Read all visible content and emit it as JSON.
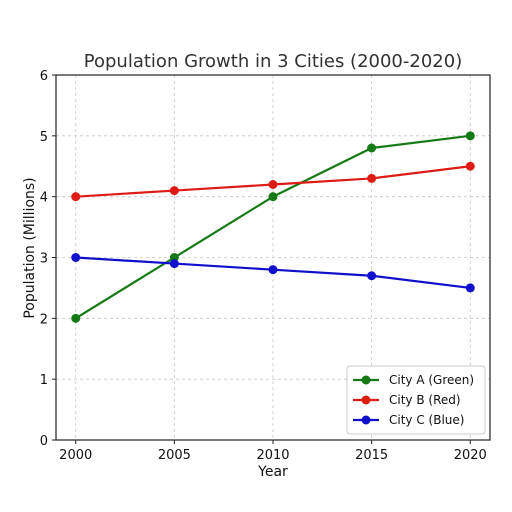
{
  "colors": {
    "green": "#157a15",
    "red": "#dd1c16",
    "blue": "#1010cc"
  },
  "chart_data": {
    "type": "line",
    "title": "Population Growth in 3 Cities (2000-2020)",
    "xlabel": "Year",
    "ylabel": "Population (Millions)",
    "x": [
      2000,
      2005,
      2010,
      2015,
      2020
    ],
    "x_ticks": [
      "2000",
      "2005",
      "2010",
      "2015",
      "2020"
    ],
    "y_ticks": [
      "0",
      "1",
      "2",
      "3",
      "4",
      "5",
      "6"
    ],
    "ylim": [
      0,
      6
    ],
    "xlim": [
      1999,
      2021
    ],
    "grid": true,
    "legend_position": "lower-right",
    "series": [
      {
        "name": "City A (Green)",
        "color": "#157a15",
        "values": [
          2.0,
          3.0,
          4.0,
          4.8,
          5.0
        ]
      },
      {
        "name": "City B (Red)",
        "color": "#dd1c16",
        "values": [
          4.0,
          4.1,
          4.2,
          4.3,
          4.5
        ]
      },
      {
        "name": "City C (Blue)",
        "color": "#1010cc",
        "values": [
          3.0,
          2.9,
          2.8,
          2.7,
          2.5
        ]
      }
    ]
  }
}
